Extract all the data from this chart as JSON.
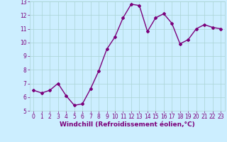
{
  "x": [
    0,
    1,
    2,
    3,
    4,
    5,
    6,
    7,
    8,
    9,
    10,
    11,
    12,
    13,
    14,
    15,
    16,
    17,
    18,
    19,
    20,
    21,
    22,
    23
  ],
  "y": [
    6.5,
    6.3,
    6.5,
    7.0,
    6.1,
    5.4,
    5.5,
    6.6,
    7.9,
    9.5,
    10.4,
    11.8,
    12.8,
    12.7,
    10.8,
    11.8,
    12.1,
    11.4,
    9.9,
    10.2,
    11.0,
    11.3,
    11.1,
    11.0
  ],
  "line_color": "#7b007b",
  "marker": "D",
  "marker_size": 2,
  "bg_color": "#cceeff",
  "grid_color": "#aad4d4",
  "xlabel": "Windchill (Refroidissement éolien,°C)",
  "ylim": [
    5,
    13
  ],
  "xlim": [
    -0.5,
    23.5
  ],
  "yticks": [
    5,
    6,
    7,
    8,
    9,
    10,
    11,
    12,
    13
  ],
  "xticks": [
    0,
    1,
    2,
    3,
    4,
    5,
    6,
    7,
    8,
    9,
    10,
    11,
    12,
    13,
    14,
    15,
    16,
    17,
    18,
    19,
    20,
    21,
    22,
    23
  ],
  "tick_color": "#7b007b",
  "tick_fontsize": 5.5,
  "xlabel_fontsize": 6.5,
  "linewidth": 1.0
}
